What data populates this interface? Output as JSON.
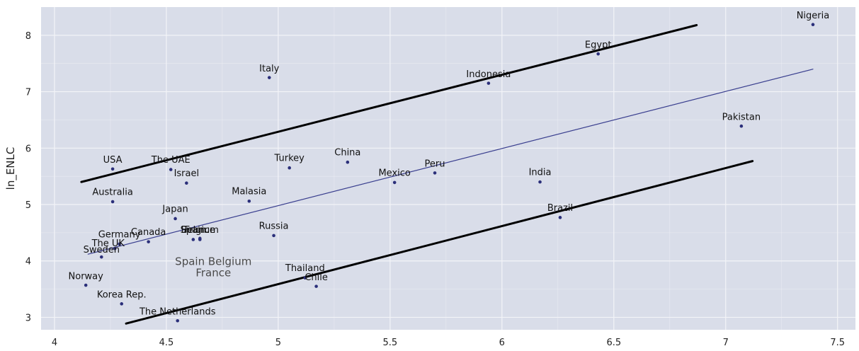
{
  "chart_data": {
    "type": "scatter",
    "title": "",
    "xlabel": "",
    "ylabel": "ln_ENLC",
    "xlim": [
      3.94,
      7.58
    ],
    "ylim": [
      2.78,
      8.5
    ],
    "xticks": [
      4,
      4.5,
      5,
      5.5,
      6,
      6.5,
      7,
      7.5
    ],
    "xtick_labels": [
      "4",
      "4.5",
      "5",
      "5.5",
      "6",
      "6.5",
      "7",
      "7.5"
    ],
    "yticks": [
      3,
      4,
      5,
      6,
      7,
      8
    ],
    "ytick_labels": [
      "3",
      "4",
      "5",
      "6",
      "7",
      "8"
    ],
    "grid": true,
    "colors": {
      "plot_bg": "#d9dde9",
      "grid": "#f3f4f8",
      "point": "#2b2f7a",
      "fit_line": "#3a3f8f",
      "bound_line": "#000000"
    },
    "points": [
      {
        "label": "Nigeria",
        "x": 7.39,
        "y": 8.19,
        "lx": 7.39,
        "ly": 8.3
      },
      {
        "label": "Egypt",
        "x": 6.43,
        "y": 7.67,
        "lx": 6.43,
        "ly": 7.78
      },
      {
        "label": "Indonesia",
        "x": 5.94,
        "y": 7.15,
        "lx": 5.94,
        "ly": 7.26
      },
      {
        "label": "Italy",
        "x": 4.96,
        "y": 7.25,
        "lx": 4.96,
        "ly": 7.36
      },
      {
        "label": "Pakistan",
        "x": 7.07,
        "y": 6.39,
        "lx": 7.07,
        "ly": 6.5
      },
      {
        "label": "USA",
        "x": 4.26,
        "y": 5.63,
        "lx": 4.26,
        "ly": 5.74
      },
      {
        "label": "The UAE",
        "x": 4.52,
        "y": 5.62,
        "lx": 4.52,
        "ly": 5.74
      },
      {
        "label": "Israel",
        "x": 4.59,
        "y": 5.38,
        "lx": 4.59,
        "ly": 5.5
      },
      {
        "label": "Turkey",
        "x": 5.05,
        "y": 5.65,
        "lx": 5.05,
        "ly": 5.77
      },
      {
        "label": "China",
        "x": 5.31,
        "y": 5.75,
        "lx": 5.31,
        "ly": 5.87
      },
      {
        "label": "Mexico",
        "x": 5.52,
        "y": 5.39,
        "lx": 5.52,
        "ly": 5.51
      },
      {
        "label": "Peru",
        "x": 5.7,
        "y": 5.56,
        "lx": 5.7,
        "ly": 5.67
      },
      {
        "label": "India",
        "x": 6.17,
        "y": 5.4,
        "lx": 6.17,
        "ly": 5.52
      },
      {
        "label": "Australia",
        "x": 4.26,
        "y": 5.05,
        "lx": 4.26,
        "ly": 5.17
      },
      {
        "label": "Malasia",
        "x": 4.87,
        "y": 5.06,
        "lx": 4.87,
        "ly": 5.18
      },
      {
        "label": "Brazil",
        "x": 6.26,
        "y": 4.77,
        "lx": 6.26,
        "ly": 4.89
      },
      {
        "label": "Japan",
        "x": 4.54,
        "y": 4.75,
        "lx": 4.54,
        "ly": 4.87
      },
      {
        "label": "Russia",
        "x": 4.98,
        "y": 4.45,
        "lx": 4.98,
        "ly": 4.57
      },
      {
        "label": "Spain",
        "x": 4.62,
        "y": 4.38,
        "lx": 4.62,
        "ly": 4.5
      },
      {
        "label": "France",
        "x": 4.65,
        "y": 4.38,
        "lx": 4.65,
        "ly": 4.5
      },
      {
        "label": "Belgium",
        "x": 4.65,
        "y": 4.4,
        "lx": 4.65,
        "ly": 4.5
      },
      {
        "label": "Canada",
        "x": 4.42,
        "y": 4.34,
        "lx": 4.42,
        "ly": 4.46
      },
      {
        "label": "Germany",
        "x": 4.29,
        "y": 4.3,
        "lx": 4.29,
        "ly": 4.42
      },
      {
        "label": "The UK",
        "x": 4.27,
        "y": 4.22,
        "lx": 4.24,
        "ly": 4.26
      },
      {
        "label": "Sweden",
        "x": 4.21,
        "y": 4.07,
        "lx": 4.21,
        "ly": 4.15
      },
      {
        "label": "Thailand",
        "x": 5.12,
        "y": 3.7,
        "lx": 5.12,
        "ly": 3.82
      },
      {
        "label": "Chile",
        "x": 5.17,
        "y": 3.55,
        "lx": 5.17,
        "ly": 3.66
      },
      {
        "label": "Norway",
        "x": 4.14,
        "y": 3.57,
        "lx": 4.14,
        "ly": 3.68
      },
      {
        "label": "Korea Rep.",
        "x": 4.3,
        "y": 3.24,
        "lx": 4.3,
        "ly": 3.35
      },
      {
        "label": "The Netherlands",
        "x": 4.55,
        "y": 2.94,
        "lx": 4.55,
        "ly": 3.05
      }
    ],
    "lines": [
      {
        "name": "upper-bound",
        "x": [
          4.12,
          6.87
        ],
        "y": [
          5.4,
          8.18
        ],
        "width": 3,
        "color": "#000000"
      },
      {
        "name": "fit",
        "x": [
          4.15,
          7.39
        ],
        "y": [
          4.12,
          7.4
        ],
        "width": 1.2,
        "color": "#3a3f8f"
      },
      {
        "name": "lower-bound",
        "x": [
          4.32,
          7.12
        ],
        "y": [
          2.89,
          5.77
        ],
        "width": 3,
        "color": "#000000"
      }
    ],
    "annotations": [
      {
        "text": "Spain Belgium",
        "x": 4.71,
        "y": 3.93
      },
      {
        "text": "France",
        "x": 4.71,
        "y": 3.73
      }
    ]
  }
}
